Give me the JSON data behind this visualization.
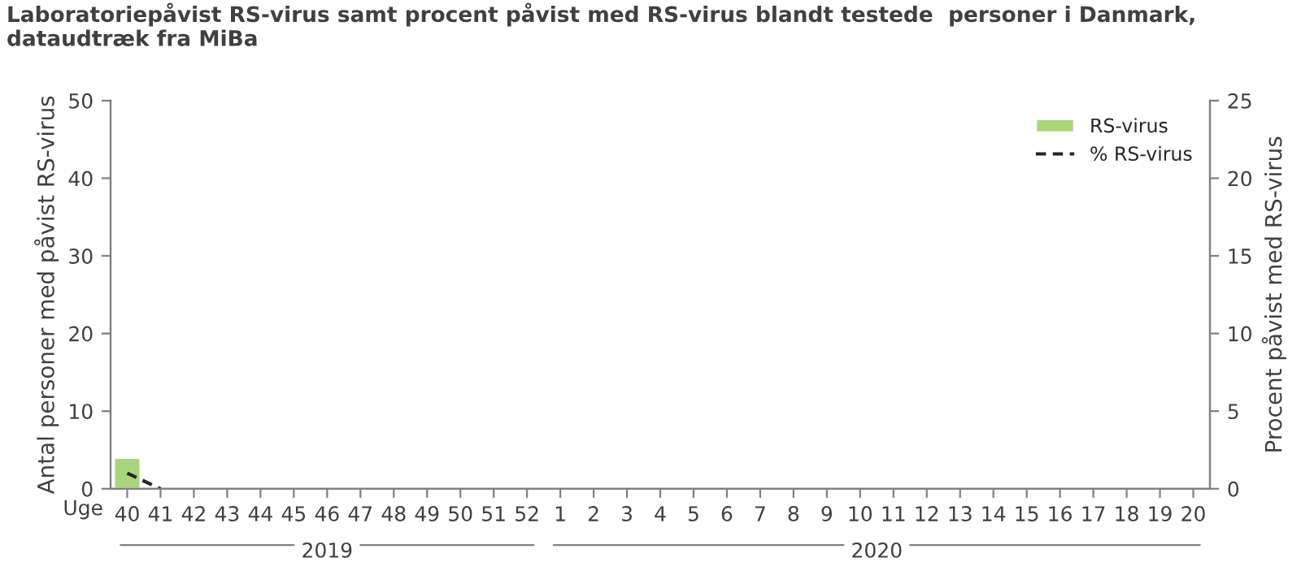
{
  "chart_data": {
    "type": "bar",
    "title": "Laboratoriepåvist RS-virus samt procent påvist med RS-virus blandt testede  personer i Danmark,\ndataudtræk fra MiBa",
    "xlabel": "Uge",
    "ylabel": "Antal personer med påvist RS-virus",
    "y2label": "Procent påvist med RS-virus",
    "categories": [
      "40",
      "41",
      "42",
      "43",
      "44",
      "45",
      "46",
      "47",
      "48",
      "49",
      "50",
      "51",
      "52",
      "1",
      "2",
      "3",
      "4",
      "5",
      "6",
      "7",
      "8",
      "9",
      "10",
      "11",
      "12",
      "13",
      "14",
      "15",
      "16",
      "17",
      "18",
      "19",
      "20"
    ],
    "series": [
      {
        "name": "RS-virus",
        "color": "#a9d67a",
        "values": [
          4,
          null,
          null,
          null,
          null,
          null,
          null,
          null,
          null,
          null,
          null,
          null,
          null,
          null,
          null,
          null,
          null,
          null,
          null,
          null,
          null,
          null,
          null,
          null,
          null,
          null,
          null,
          null,
          null,
          null,
          null,
          null,
          null
        ]
      },
      {
        "name": "% RS-virus",
        "type": "line",
        "axis": "y2",
        "color": "#262626",
        "line_style": "dashed",
        "values": [
          1.0,
          0,
          null,
          null,
          null,
          null,
          null,
          null,
          null,
          null,
          null,
          null,
          null,
          null,
          null,
          null,
          null,
          null,
          null,
          null,
          null,
          null,
          null,
          null,
          null,
          null,
          null,
          null,
          null,
          null,
          null,
          null,
          null
        ]
      }
    ],
    "ylim": [
      0,
      50
    ],
    "yticks": [
      0,
      10,
      20,
      30,
      40,
      50
    ],
    "y2lim": [
      0,
      25
    ],
    "y2ticks": [
      0,
      5,
      10,
      15,
      20,
      25
    ],
    "annotations": [
      "2019",
      "2020"
    ],
    "grid": false,
    "legend": "top right"
  }
}
